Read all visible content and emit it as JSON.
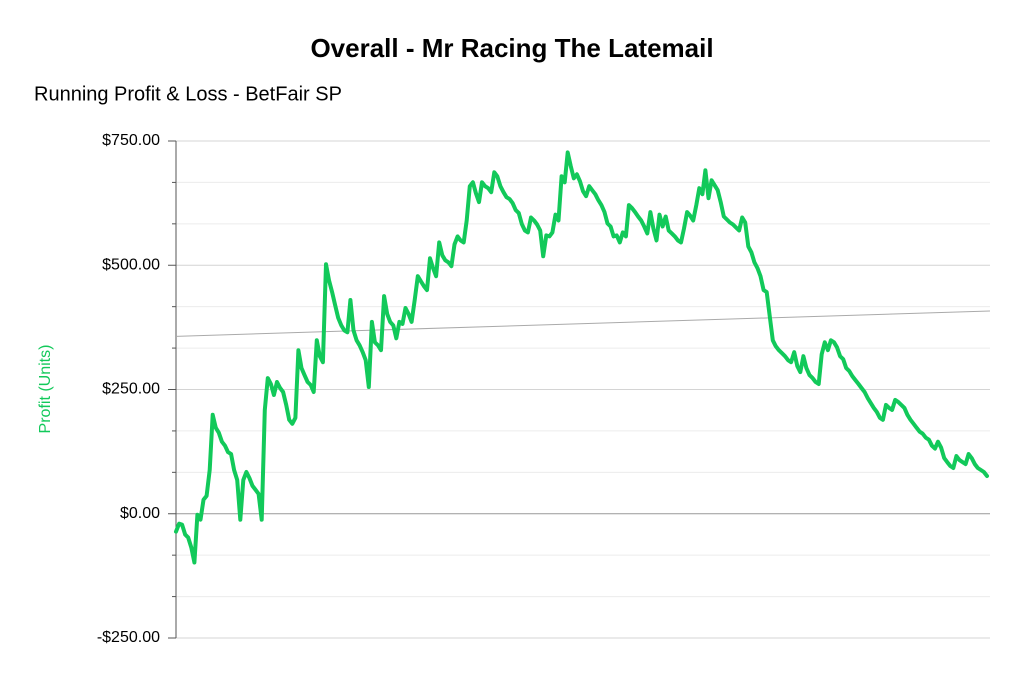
{
  "chart_data": {
    "type": "line",
    "title": "Overall - Mr Racing The Latemail",
    "subtitle": "Running Profit & Loss - BetFair SP",
    "y_label": "Profit (Units)",
    "ylim": [
      -250,
      750
    ],
    "yticks": [
      {
        "value": -250,
        "label": "-$250.00"
      },
      {
        "value": 0,
        "label": "$0.00"
      },
      {
        "value": 250,
        "label": "$250.00"
      },
      {
        "value": 500,
        "label": "$500.00"
      },
      {
        "value": 750,
        "label": "$750.00"
      }
    ],
    "minor_yticks": [
      -166.67,
      -83.33,
      83.33,
      166.67,
      333.33,
      416.67,
      583.33,
      666.67
    ],
    "grid": true,
    "trendline": [
      357,
      408
    ],
    "series": [
      {
        "name": "Profit",
        "color": "#12c95a",
        "values": [
          -36,
          -20,
          -22,
          -42,
          -48,
          -68,
          -98,
          -2,
          -12,
          28,
          36,
          88,
          199,
          173,
          163,
          145,
          137,
          124,
          120,
          88,
          68,
          -12,
          68,
          84,
          72,
          56,
          48,
          40,
          -12,
          209,
          273,
          261,
          239,
          265,
          253,
          245,
          219,
          189,
          181,
          193,
          329,
          293,
          279,
          265,
          259,
          245,
          349,
          317,
          305,
          502,
          470,
          446,
          420,
          394,
          379,
          369,
          365,
          430,
          369,
          349,
          339,
          325,
          309,
          255,
          386,
          345,
          339,
          329,
          438,
          402,
          386,
          379,
          353,
          386,
          382,
          414,
          402,
          386,
          430,
          478,
          468,
          458,
          450,
          514,
          494,
          478,
          546,
          520,
          510,
          506,
          498,
          542,
          558,
          550,
          546,
          590,
          659,
          667,
          645,
          627,
          667,
          659,
          655,
          647,
          687,
          679,
          659,
          647,
          637,
          633,
          625,
          611,
          605,
          583,
          570,
          566,
          596,
          590,
          582,
          570,
          518,
          560,
          558,
          566,
          602,
          590,
          679,
          667,
          727,
          699,
          675,
          683,
          669,
          649,
          639,
          659,
          651,
          643,
          631,
          621,
          607,
          584,
          578,
          558,
          560,
          546,
          566,
          558,
          621,
          615,
          607,
          598,
          590,
          578,
          564,
          607,
          574,
          550,
          602,
          578,
          598,
          570,
          564,
          558,
          550,
          546,
          574,
          607,
          600,
          590,
          621,
          655,
          643,
          691,
          635,
          671,
          661,
          651,
          627,
          598,
          592,
          586,
          582,
          576,
          570,
          596,
          586,
          538,
          526,
          506,
          494,
          478,
          450,
          446,
          398,
          349,
          337,
          329,
          323,
          317,
          309,
          305,
          325,
          297,
          285,
          317,
          293,
          279,
          273,
          265,
          261,
          321,
          345,
          329,
          349,
          345,
          335,
          317,
          311,
          293,
          287,
          277,
          269,
          261,
          253,
          245,
          233,
          223,
          213,
          205,
          193,
          189,
          219,
          213,
          209,
          229,
          225,
          219,
          213,
          199,
          189,
          181,
          173,
          165,
          161,
          153,
          149,
          137,
          131,
          145,
          133,
          112,
          104,
          96,
          92,
          116,
          108,
          104,
          100,
          120,
          112,
          100,
          92,
          88,
          84,
          76
        ]
      }
    ]
  }
}
